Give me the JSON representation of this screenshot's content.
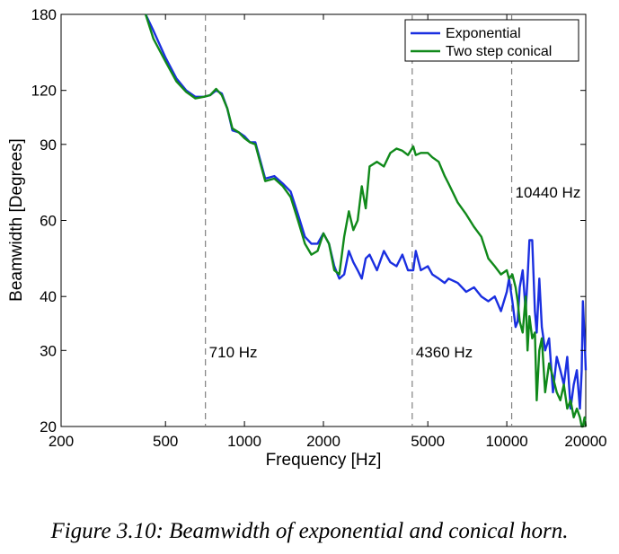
{
  "chart_data": {
    "type": "line",
    "xscale": "log",
    "yscale": "log",
    "xlim": [
      200,
      20000
    ],
    "ylim": [
      20,
      180
    ],
    "xlabel": "Frequency [Hz]",
    "ylabel": "Beamwidth [Degrees]",
    "xticks": [
      200,
      500,
      1000,
      2000,
      5000,
      10000,
      20000
    ],
    "xtick_labels": [
      "200",
      "500",
      "1000",
      "2000",
      "5000",
      "10000",
      "20000"
    ],
    "yticks": [
      20,
      30,
      40,
      60,
      90,
      120,
      180
    ],
    "ytick_labels": [
      "20",
      "30",
      "40",
      "60",
      "90",
      "120",
      "180"
    ],
    "grid": false,
    "legend_position": "top-right",
    "vlines": [
      {
        "x": 710,
        "label": "710 Hz"
      },
      {
        "x": 4360,
        "label": "4360 Hz"
      },
      {
        "x": 10440,
        "label": "10440 Hz"
      }
    ],
    "series": [
      {
        "name": "Exponential",
        "color": "#1a2fe0",
        "x": [
          420,
          450,
          500,
          550,
          600,
          650,
          700,
          740,
          780,
          820,
          860,
          900,
          950,
          1000,
          1050,
          1100,
          1200,
          1300,
          1400,
          1500,
          1600,
          1700,
          1800,
          1900,
          2000,
          2100,
          2200,
          2300,
          2400,
          2500,
          2600,
          2700,
          2800,
          2900,
          3000,
          3200,
          3400,
          3600,
          3800,
          4000,
          4200,
          4400,
          4500,
          4700,
          5000,
          5200,
          5500,
          5800,
          6000,
          6500,
          7000,
          7500,
          8000,
          8500,
          9000,
          9500,
          10000,
          10200,
          10500,
          10800,
          11000,
          11200,
          11500,
          11800,
          12000,
          12200,
          12500,
          12800,
          13000,
          13300,
          13600,
          14000,
          14500,
          15000,
          15500,
          16000,
          16500,
          17000,
          17500,
          18000,
          18500,
          19000,
          19300,
          19500,
          19800,
          20000
        ],
        "y": [
          180,
          165,
          143,
          128,
          120,
          116,
          116,
          117,
          120,
          118,
          109,
          97,
          96,
          94,
          91,
          91,
          75,
          76,
          73,
          70,
          62,
          55,
          53,
          53,
          56,
          53,
          47,
          44,
          45,
          51,
          48,
          46,
          44,
          49,
          50,
          46,
          51,
          48,
          47,
          50,
          46,
          46,
          51,
          46,
          47,
          45,
          44,
          43,
          44,
          43,
          41,
          42,
          40,
          39,
          40,
          37,
          41,
          44,
          39,
          34,
          35,
          42,
          46,
          37,
          44,
          54,
          54,
          37,
          33,
          44,
          34,
          30,
          32,
          24,
          29,
          27,
          25,
          29,
          22,
          25,
          27,
          22,
          27,
          39,
          32,
          27
        ]
      },
      {
        "name": "Two step conical",
        "color": "#10891a",
        "x": [
          420,
          450,
          500,
          550,
          600,
          650,
          700,
          740,
          780,
          820,
          860,
          900,
          950,
          1000,
          1050,
          1100,
          1200,
          1300,
          1400,
          1500,
          1600,
          1700,
          1800,
          1900,
          2000,
          2100,
          2200,
          2300,
          2400,
          2500,
          2600,
          2700,
          2800,
          2900,
          3000,
          3200,
          3400,
          3600,
          3800,
          4000,
          4200,
          4400,
          4500,
          4700,
          5000,
          5200,
          5500,
          5800,
          6000,
          6500,
          7000,
          7500,
          8000,
          8500,
          9000,
          9500,
          10000,
          10200,
          10500,
          10800,
          11000,
          11200,
          11500,
          11800,
          12000,
          12200,
          12500,
          12800,
          13000,
          13300,
          13600,
          14000,
          14500,
          15000,
          15500,
          16000,
          16500,
          17000,
          17500,
          18000,
          18500,
          19000,
          19300,
          19500,
          19800,
          20000
        ],
        "y": [
          180,
          158,
          140,
          126,
          119,
          115,
          116,
          117,
          121,
          117,
          109,
          98,
          96,
          93,
          91,
          90,
          74,
          75,
          72,
          68,
          60,
          53,
          50,
          51,
          56,
          53,
          46,
          45,
          55,
          63,
          57,
          60,
          72,
          64,
          80,
          82,
          80,
          86,
          88,
          87,
          85,
          89,
          85,
          86,
          86,
          84,
          82,
          76,
          73,
          66,
          62,
          58,
          55,
          49,
          47,
          45,
          46,
          44,
          45,
          42,
          39,
          35,
          33,
          40,
          30,
          36,
          32,
          33,
          23,
          30,
          32,
          24,
          28,
          26,
          24,
          23,
          25,
          22,
          23,
          21,
          22,
          21,
          20,
          20,
          21,
          20
        ]
      }
    ]
  },
  "caption": "Figure 3.10: Beamwidth of exponential and conical horn."
}
